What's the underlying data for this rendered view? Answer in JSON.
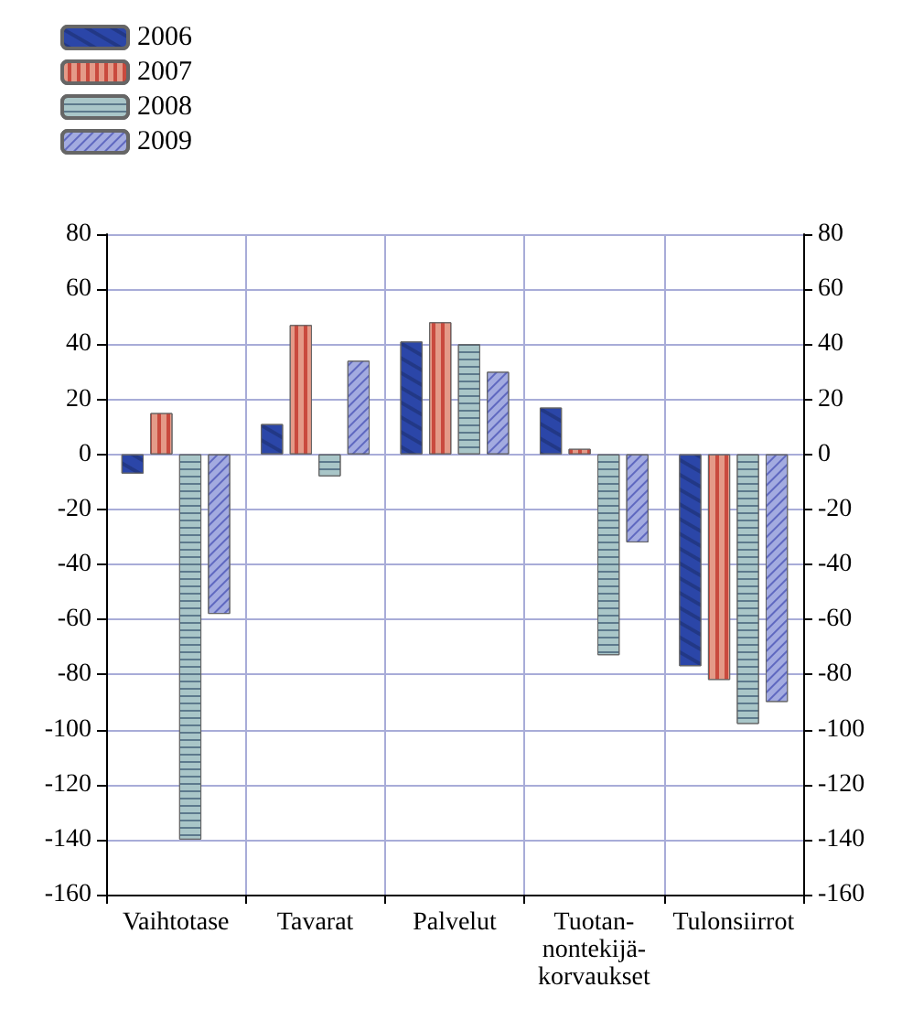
{
  "chart_data": {
    "type": "bar",
    "categories": [
      "Vaihtotase",
      "Tavarat",
      "Palvelut",
      "Tuotan-\nnontekijä-\nkorvaukset",
      "Tulonsiirrot"
    ],
    "series": [
      {
        "name": "2006",
        "color": "#2b46a8",
        "values": [
          -7,
          11,
          41,
          17,
          -77
        ]
      },
      {
        "name": "2007",
        "color": "#e49a88",
        "values": [
          15,
          47,
          48,
          2,
          -82
        ]
      },
      {
        "name": "2008",
        "color": "#a9c6c8",
        "values": [
          -140,
          -8,
          40,
          -73,
          -98
        ]
      },
      {
        "name": "2009",
        "color": "#a3abe0",
        "values": [
          -58,
          34,
          30,
          -32,
          -90
        ]
      }
    ],
    "ylim": [
      -160,
      80
    ],
    "yticks": [
      -160,
      -140,
      -120,
      -100,
      -80,
      -60,
      -40,
      -20,
      0,
      20,
      40,
      60,
      80
    ],
    "y2lim": [
      -160,
      80
    ],
    "y2ticks": [
      -160,
      -140,
      -120,
      -100,
      -80,
      -60,
      -40,
      -20,
      0,
      20,
      40,
      60,
      80
    ],
    "grid": true,
    "legend": "top left"
  }
}
